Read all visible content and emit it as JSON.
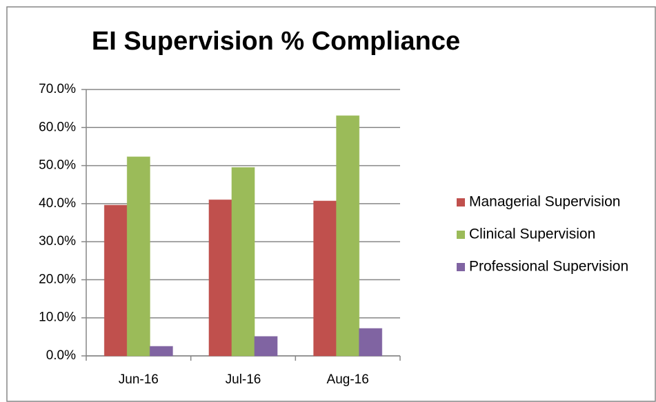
{
  "chart_data": {
    "type": "bar",
    "title": "EI Supervision % Compliance",
    "categories": [
      "Jun-16",
      "Jul-16",
      "Aug-16"
    ],
    "series": [
      {
        "name": "Managerial Supervision",
        "color": "#c0504d",
        "values": [
          39.6,
          41.0,
          40.7
        ]
      },
      {
        "name": "Clinical Supervision",
        "color": "#9bbb59",
        "values": [
          52.3,
          49.5,
          63.1
        ]
      },
      {
        "name": "Professional Supervision",
        "color": "#8064a2",
        "values": [
          2.5,
          5.1,
          7.2
        ]
      }
    ],
    "ylim": [
      0,
      70
    ],
    "yticks": [
      {
        "value": 0,
        "label": "0.0%"
      },
      {
        "value": 10,
        "label": "10.0%"
      },
      {
        "value": 20,
        "label": "20.0%"
      },
      {
        "value": 30,
        "label": "30.0%"
      },
      {
        "value": 40,
        "label": "40.0%"
      },
      {
        "value": 50,
        "label": "50.0%"
      },
      {
        "value": 60,
        "label": "60.0%"
      },
      {
        "value": 70,
        "label": "70.0%"
      }
    ],
    "grid": true,
    "legend": "right"
  }
}
